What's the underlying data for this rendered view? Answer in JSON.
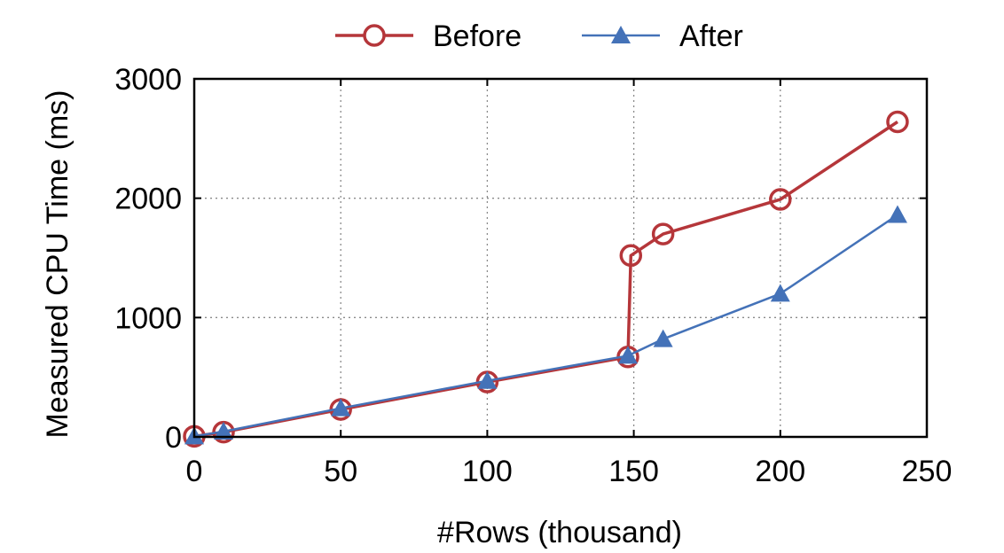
{
  "chart_data": {
    "type": "line",
    "title": "",
    "xlabel": "#Rows (thousand)",
    "ylabel": "Measured CPU Time (ms)",
    "xlim": [
      0,
      250
    ],
    "ylim": [
      0,
      3000
    ],
    "xticks": [
      0,
      50,
      100,
      150,
      200,
      250
    ],
    "yticks": [
      0,
      1000,
      2000,
      3000
    ],
    "xtick_labels": [
      "0",
      "50",
      "100",
      "150",
      "200",
      "250"
    ],
    "ytick_labels": [
      "0",
      "1000",
      "2000",
      "3000"
    ],
    "grid": true,
    "legend_position": "top",
    "series": [
      {
        "name": "Before",
        "color": "#b5363a",
        "marker": "open-circle",
        "x": [
          0,
          10,
          50,
          100,
          148,
          149,
          160,
          200,
          240
        ],
        "y": [
          5,
          40,
          230,
          460,
          670,
          1520,
          1700,
          1990,
          2640
        ]
      },
      {
        "name": "After",
        "color": "#4472b8",
        "marker": "filled-triangle",
        "x": [
          0,
          10,
          50,
          100,
          148,
          160,
          200,
          240
        ],
        "y": [
          5,
          45,
          240,
          470,
          680,
          820,
          1200,
          1860
        ]
      }
    ]
  }
}
